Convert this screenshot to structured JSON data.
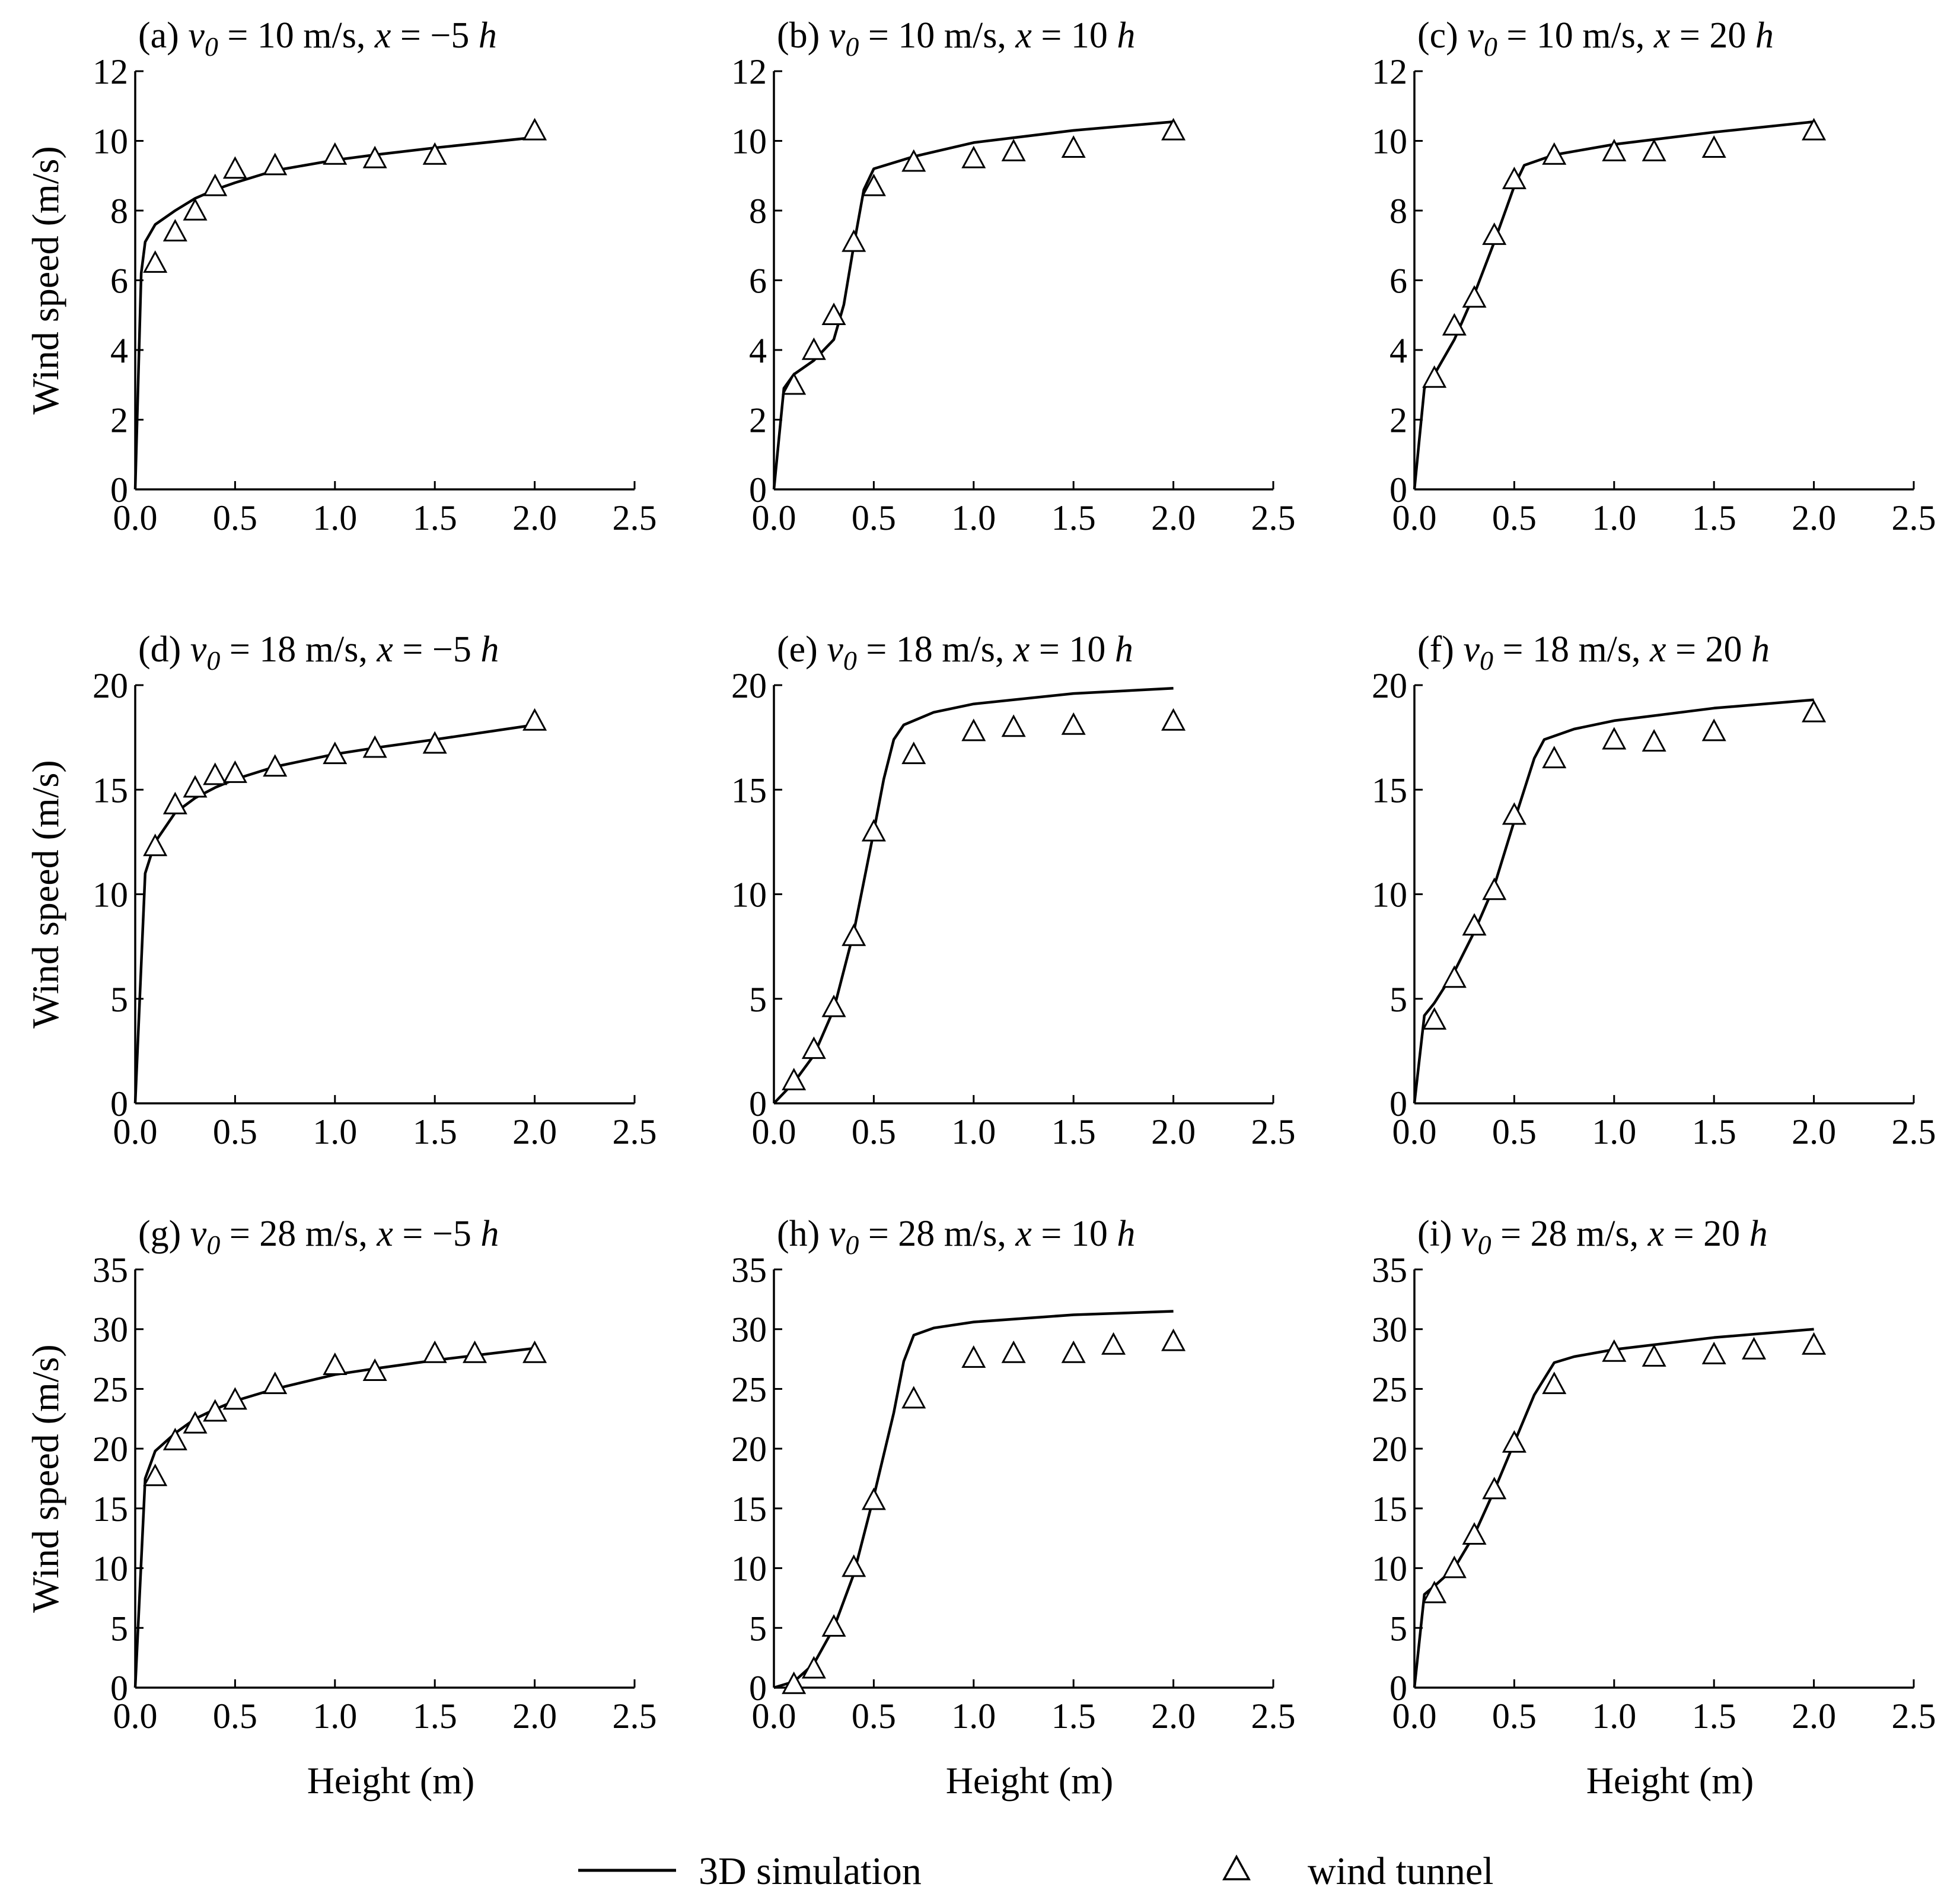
{
  "legend": {
    "simulation_label": "3D simulation",
    "tunnel_label": "wind tunnel"
  },
  "chart_data": [
    {
      "type": "line",
      "panel": "(a)",
      "title_parts": {
        "letter": "(a) ",
        "v": "v",
        "sub": "0",
        "mid": " = 10 m/s, ",
        "x": "x",
        "rest": " = −5 ",
        "h": "h"
      },
      "xlabel": "",
      "ylabel": "Wind speed (m/s)",
      "xlim": [
        0,
        2.5
      ],
      "ylim": [
        0,
        12
      ],
      "xticks": [
        0,
        0.5,
        1.0,
        1.5,
        2.0,
        2.5
      ],
      "yticks": [
        0,
        2,
        4,
        6,
        8,
        10,
        12
      ],
      "simulation": [
        [
          0,
          0
        ],
        [
          0.03,
          6.2
        ],
        [
          0.05,
          7.1
        ],
        [
          0.1,
          7.6
        ],
        [
          0.2,
          8.0
        ],
        [
          0.3,
          8.35
        ],
        [
          0.4,
          8.6
        ],
        [
          0.5,
          8.8
        ],
        [
          0.7,
          9.15
        ],
        [
          1.0,
          9.45
        ],
        [
          1.2,
          9.6
        ],
        [
          1.5,
          9.8
        ],
        [
          2.0,
          10.1
        ]
      ],
      "tunnel": [
        [
          0.1,
          6.5
        ],
        [
          0.2,
          7.4
        ],
        [
          0.3,
          8.0
        ],
        [
          0.4,
          8.7
        ],
        [
          0.5,
          9.2
        ],
        [
          0.7,
          9.3
        ],
        [
          1.0,
          9.6
        ],
        [
          1.2,
          9.5
        ],
        [
          1.5,
          9.6
        ],
        [
          2.0,
          10.3
        ]
      ]
    },
    {
      "type": "line",
      "panel": "(b)",
      "title_parts": {
        "letter": "(b) ",
        "v": "v",
        "sub": "0",
        "mid": " = 10 m/s, ",
        "x": "x",
        "rest": " = 10 ",
        "h": "h"
      },
      "xlabel": "",
      "ylabel": "",
      "xlim": [
        0,
        2.5
      ],
      "ylim": [
        0,
        12
      ],
      "xticks": [
        0,
        0.5,
        1.0,
        1.5,
        2.0,
        2.5
      ],
      "yticks": [
        0,
        2,
        4,
        6,
        8,
        10,
        12
      ],
      "simulation": [
        [
          0,
          0
        ],
        [
          0.05,
          2.9
        ],
        [
          0.1,
          3.3
        ],
        [
          0.2,
          3.7
        ],
        [
          0.3,
          4.3
        ],
        [
          0.35,
          5.3
        ],
        [
          0.4,
          7.0
        ],
        [
          0.45,
          8.6
        ],
        [
          0.5,
          9.2
        ],
        [
          0.7,
          9.55
        ],
        [
          1.0,
          9.95
        ],
        [
          1.5,
          10.3
        ],
        [
          2.0,
          10.55
        ]
      ],
      "tunnel": [
        [
          0.1,
          3.0
        ],
        [
          0.2,
          4.0
        ],
        [
          0.3,
          5.0
        ],
        [
          0.4,
          7.1
        ],
        [
          0.5,
          8.7
        ],
        [
          0.7,
          9.4
        ],
        [
          1.0,
          9.5
        ],
        [
          1.2,
          9.7
        ],
        [
          1.5,
          9.8
        ],
        [
          2.0,
          10.3
        ]
      ]
    },
    {
      "type": "line",
      "panel": "(c)",
      "title_parts": {
        "letter": "(c) ",
        "v": "v",
        "sub": "0",
        "mid": " = 10 m/s, ",
        "x": "x",
        "rest": " = 20 ",
        "h": "h"
      },
      "xlabel": "",
      "ylabel": "",
      "xlim": [
        0,
        2.5
      ],
      "ylim": [
        0,
        12
      ],
      "xticks": [
        0,
        0.5,
        1.0,
        1.5,
        2.0,
        2.5
      ],
      "yticks": [
        0,
        2,
        4,
        6,
        8,
        10,
        12
      ],
      "simulation": [
        [
          0,
          0
        ],
        [
          0.05,
          2.9
        ],
        [
          0.1,
          3.3
        ],
        [
          0.2,
          4.3
        ],
        [
          0.3,
          5.6
        ],
        [
          0.4,
          7.1
        ],
        [
          0.5,
          8.7
        ],
        [
          0.55,
          9.3
        ],
        [
          0.7,
          9.6
        ],
        [
          1.0,
          9.9
        ],
        [
          1.5,
          10.25
        ],
        [
          2.0,
          10.55
        ]
      ],
      "tunnel": [
        [
          0.1,
          3.2
        ],
        [
          0.2,
          4.7
        ],
        [
          0.3,
          5.5
        ],
        [
          0.4,
          7.3
        ],
        [
          0.5,
          8.9
        ],
        [
          0.7,
          9.6
        ],
        [
          1.0,
          9.7
        ],
        [
          1.2,
          9.7
        ],
        [
          1.5,
          9.8
        ],
        [
          2.0,
          10.3
        ]
      ]
    },
    {
      "type": "line",
      "panel": "(d)",
      "title_parts": {
        "letter": "(d) ",
        "v": "v",
        "sub": "0",
        "mid": " = 18 m/s, ",
        "x": "x",
        "rest": " = −5 ",
        "h": "h"
      },
      "xlabel": "",
      "ylabel": "Wind speed (m/s)",
      "xlim": [
        0,
        2.5
      ],
      "ylim": [
        0,
        20
      ],
      "xticks": [
        0,
        0.5,
        1.0,
        1.5,
        2.0,
        2.5
      ],
      "yticks": [
        0,
        5,
        10,
        15,
        20
      ],
      "simulation": [
        [
          0,
          0
        ],
        [
          0.05,
          11.0
        ],
        [
          0.1,
          12.5
        ],
        [
          0.2,
          13.9
        ],
        [
          0.3,
          14.6
        ],
        [
          0.4,
          15.1
        ],
        [
          0.5,
          15.5
        ],
        [
          0.7,
          16.1
        ],
        [
          1.0,
          16.7
        ],
        [
          1.2,
          17.0
        ],
        [
          1.5,
          17.4
        ],
        [
          2.0,
          18.1
        ]
      ],
      "tunnel": [
        [
          0.1,
          12.3
        ],
        [
          0.2,
          14.3
        ],
        [
          0.3,
          15.1
        ],
        [
          0.4,
          15.7
        ],
        [
          0.5,
          15.8
        ],
        [
          0.7,
          16.1
        ],
        [
          1.0,
          16.7
        ],
        [
          1.2,
          17.0
        ],
        [
          1.5,
          17.2
        ],
        [
          2.0,
          18.3
        ]
      ]
    },
    {
      "type": "line",
      "panel": "(e)",
      "title_parts": {
        "letter": "(e) ",
        "v": "v",
        "sub": "0",
        "mid": " = 18 m/s, ",
        "x": "x",
        "rest": " = 10 ",
        "h": "h"
      },
      "xlabel": "",
      "ylabel": "",
      "xlim": [
        0,
        2.5
      ],
      "ylim": [
        0,
        20
      ],
      "xticks": [
        0,
        0.5,
        1.0,
        1.5,
        2.0,
        2.5
      ],
      "yticks": [
        0,
        5,
        10,
        15,
        20
      ],
      "simulation": [
        [
          0,
          0
        ],
        [
          0.1,
          1.0
        ],
        [
          0.2,
          2.3
        ],
        [
          0.3,
          4.5
        ],
        [
          0.4,
          8.2
        ],
        [
          0.5,
          13.0
        ],
        [
          0.55,
          15.5
        ],
        [
          0.6,
          17.4
        ],
        [
          0.65,
          18.1
        ],
        [
          0.8,
          18.7
        ],
        [
          1.0,
          19.1
        ],
        [
          1.5,
          19.6
        ],
        [
          2.0,
          19.85
        ]
      ],
      "tunnel": [
        [
          0.1,
          1.1
        ],
        [
          0.2,
          2.6
        ],
        [
          0.3,
          4.6
        ],
        [
          0.4,
          8.0
        ],
        [
          0.5,
          13.0
        ],
        [
          0.7,
          16.7
        ],
        [
          1.0,
          17.8
        ],
        [
          1.2,
          18.0
        ],
        [
          1.5,
          18.1
        ],
        [
          2.0,
          18.3
        ]
      ]
    },
    {
      "type": "line",
      "panel": "(f)",
      "title_parts": {
        "letter": "(f) ",
        "v": "v",
        "sub": "0",
        "mid": " = 18 m/s, ",
        "x": "x",
        "rest": " = 20 ",
        "h": "h"
      },
      "xlabel": "",
      "ylabel": "",
      "xlim": [
        0,
        2.5
      ],
      "ylim": [
        0,
        20
      ],
      "xticks": [
        0,
        0.5,
        1.0,
        1.5,
        2.0,
        2.5
      ],
      "yticks": [
        0,
        5,
        10,
        15,
        20
      ],
      "simulation": [
        [
          0,
          0
        ],
        [
          0.05,
          4.2
        ],
        [
          0.1,
          4.8
        ],
        [
          0.2,
          6.3
        ],
        [
          0.3,
          8.2
        ],
        [
          0.4,
          10.4
        ],
        [
          0.5,
          13.5
        ],
        [
          0.6,
          16.5
        ],
        [
          0.65,
          17.4
        ],
        [
          0.8,
          17.9
        ],
        [
          1.0,
          18.3
        ],
        [
          1.5,
          18.9
        ],
        [
          2.0,
          19.3
        ]
      ],
      "tunnel": [
        [
          0.1,
          4.0
        ],
        [
          0.2,
          6.0
        ],
        [
          0.3,
          8.5
        ],
        [
          0.4,
          10.2
        ],
        [
          0.5,
          13.8
        ],
        [
          0.7,
          16.5
        ],
        [
          1.0,
          17.4
        ],
        [
          1.2,
          17.3
        ],
        [
          1.5,
          17.8
        ],
        [
          2.0,
          18.7
        ]
      ]
    },
    {
      "type": "line",
      "panel": "(g)",
      "title_parts": {
        "letter": "(g) ",
        "v": "v",
        "sub": "0",
        "mid": " = 28 m/s, ",
        "x": "x",
        "rest": " = −5 ",
        "h": "h"
      },
      "xlabel": "Height (m)",
      "ylabel": "Wind speed (m/s)",
      "xlim": [
        0,
        2.5
      ],
      "ylim": [
        0,
        35
      ],
      "xticks": [
        0,
        0.5,
        1.0,
        1.5,
        2.0,
        2.5
      ],
      "yticks": [
        0,
        5,
        10,
        15,
        20,
        25,
        30,
        35
      ],
      "simulation": [
        [
          0,
          0
        ],
        [
          0.05,
          17.5
        ],
        [
          0.1,
          19.8
        ],
        [
          0.2,
          21.3
        ],
        [
          0.3,
          22.5
        ],
        [
          0.4,
          23.3
        ],
        [
          0.5,
          24.0
        ],
        [
          0.7,
          25.0
        ],
        [
          1.0,
          26.2
        ],
        [
          1.2,
          26.7
        ],
        [
          1.5,
          27.4
        ],
        [
          2.0,
          28.4
        ]
      ],
      "tunnel": [
        [
          0.1,
          17.7
        ],
        [
          0.2,
          20.7
        ],
        [
          0.3,
          22.1
        ],
        [
          0.4,
          23.1
        ],
        [
          0.5,
          24.1
        ],
        [
          0.7,
          25.4
        ],
        [
          1.0,
          27.0
        ],
        [
          1.2,
          26.5
        ],
        [
          1.5,
          28.0
        ],
        [
          1.7,
          28.0
        ],
        [
          2.0,
          28.0
        ]
      ]
    },
    {
      "type": "line",
      "panel": "(h)",
      "title_parts": {
        "letter": "(h) ",
        "v": "v",
        "sub": "0",
        "mid": " = 28 m/s, ",
        "x": "x",
        "rest": " = 10 ",
        "h": "h"
      },
      "xlabel": "Height (m)",
      "ylabel": "",
      "xlim": [
        0,
        2.5
      ],
      "ylim": [
        0,
        35
      ],
      "xticks": [
        0,
        0.5,
        1.0,
        1.5,
        2.0,
        2.5
      ],
      "yticks": [
        0,
        5,
        10,
        15,
        20,
        25,
        30,
        35
      ],
      "simulation": [
        [
          0,
          0
        ],
        [
          0.1,
          0.5
        ],
        [
          0.2,
          2.0
        ],
        [
          0.3,
          5.0
        ],
        [
          0.4,
          9.5
        ],
        [
          0.5,
          16.0
        ],
        [
          0.6,
          23.0
        ],
        [
          0.65,
          27.3
        ],
        [
          0.7,
          29.5
        ],
        [
          0.8,
          30.1
        ],
        [
          1.0,
          30.6
        ],
        [
          1.5,
          31.2
        ],
        [
          2.0,
          31.5
        ]
      ],
      "tunnel": [
        [
          0.1,
          0.3
        ],
        [
          0.2,
          1.6
        ],
        [
          0.3,
          5.1
        ],
        [
          0.4,
          10.1
        ],
        [
          0.5,
          15.7
        ],
        [
          0.7,
          24.2
        ],
        [
          1.0,
          27.6
        ],
        [
          1.2,
          28.0
        ],
        [
          1.5,
          28.0
        ],
        [
          1.7,
          28.7
        ],
        [
          2.0,
          29.0
        ]
      ]
    },
    {
      "type": "line",
      "panel": "(i)",
      "title_parts": {
        "letter": "(i) ",
        "v": "v",
        "sub": "0",
        "mid": " = 28 m/s, ",
        "x": "x",
        "rest": " = 20 ",
        "h": "h"
      },
      "xlabel": "Height (m)",
      "ylabel": "",
      "xlim": [
        0,
        2.5
      ],
      "ylim": [
        0,
        35
      ],
      "xticks": [
        0,
        0.5,
        1.0,
        1.5,
        2.0,
        2.5
      ],
      "yticks": [
        0,
        5,
        10,
        15,
        20,
        25,
        30,
        35
      ],
      "simulation": [
        [
          0,
          0
        ],
        [
          0.05,
          7.8
        ],
        [
          0.1,
          8.5
        ],
        [
          0.2,
          10.0
        ],
        [
          0.3,
          12.8
        ],
        [
          0.4,
          16.5
        ],
        [
          0.5,
          20.5
        ],
        [
          0.6,
          24.5
        ],
        [
          0.7,
          27.2
        ],
        [
          0.8,
          27.7
        ],
        [
          1.0,
          28.3
        ],
        [
          1.5,
          29.3
        ],
        [
          2.0,
          30.0
        ]
      ],
      "tunnel": [
        [
          0.1,
          7.9
        ],
        [
          0.2,
          10.0
        ],
        [
          0.3,
          12.8
        ],
        [
          0.4,
          16.6
        ],
        [
          0.5,
          20.5
        ],
        [
          0.7,
          25.4
        ],
        [
          1.0,
          28.1
        ],
        [
          1.2,
          27.7
        ],
        [
          1.5,
          27.9
        ],
        [
          1.7,
          28.3
        ],
        [
          2.0,
          28.7
        ]
      ]
    }
  ]
}
